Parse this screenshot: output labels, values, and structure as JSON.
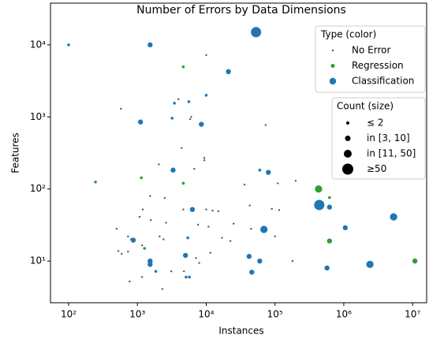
{
  "chart_data": {
    "type": "scatter",
    "title": "Number of Errors by Data Dimensions",
    "x_label": "Instances",
    "y_label": "Features",
    "log_x": true,
    "log_y": true,
    "xlim": [
      54.5,
      16000000
    ],
    "ylim": [
      2.64,
      37900
    ],
    "xticks": [
      {
        "value": 100,
        "label": "10²"
      },
      {
        "value": 1000,
        "label": "10³"
      },
      {
        "value": 10000,
        "label": "10⁴"
      },
      {
        "value": 100000,
        "label": "10⁵"
      },
      {
        "value": 1000000,
        "label": "10⁶"
      },
      {
        "value": 10000000,
        "label": "10⁷"
      }
    ],
    "yticks": [
      {
        "value": 10,
        "label": "10¹"
      },
      {
        "value": 100,
        "label": "10²"
      },
      {
        "value": 1000,
        "label": "10³"
      },
      {
        "value": 10000,
        "label": "10⁴"
      }
    ],
    "legend_title": "Type (color)",
    "size_legend_title": "Count (size)",
    "size_legend": [
      "≤ 2",
      "in [3, 10]",
      "in [11, 50]",
      "≥50"
    ],
    "series": [
      {
        "name": "No Error",
        "color": "#555555",
        "x": [
          10000,
          575,
          3950,
          6050,
          5850,
          9400,
          9400,
          4400,
          2050,
          6700,
          73000,
          200000,
          110000,
          36000,
          1530,
          2500,
          1200,
          4650,
          10000,
          12400,
          15000,
          43000,
          90000,
          115000,
          1080,
          500,
          1570,
          2600,
          7600,
          10800,
          25000,
          45000,
          100000,
          2100,
          2400,
          730,
          810,
          1170,
          530,
          590,
          730,
          11500,
          7100,
          180000,
          22500,
          17000,
          1170,
          770,
          2300,
          4750,
          3100,
          7900
        ],
        "y": [
          7200,
          1300,
          1760,
          1000,
          930,
          270,
          250,
          370,
          220,
          190,
          770,
          130,
          120,
          115,
          80,
          75,
          52,
          52,
          52,
          50,
          49,
          59,
          53,
          51,
          41,
          28,
          37,
          34,
          32,
          30,
          33,
          28,
          22,
          22,
          20,
          22,
          20,
          16.5,
          13.8,
          12.6,
          13.5,
          13,
          11,
          10,
          19,
          21,
          6,
          5.2,
          4.1,
          7.2,
          7.2,
          9.4
        ],
        "sizes": [
          1,
          1,
          1,
          1,
          1,
          1,
          1,
          1,
          1,
          1,
          1,
          1,
          1,
          1,
          1,
          1,
          1,
          1,
          1,
          1,
          1,
          1,
          1,
          1,
          1,
          1,
          1,
          1,
          1,
          1,
          1,
          1,
          1,
          1,
          1,
          1,
          1,
          1,
          1,
          1,
          1,
          1,
          1,
          1,
          1,
          1,
          1,
          1,
          1,
          1,
          1,
          1
        ]
      },
      {
        "name": "Regression",
        "color": "#2ca02c",
        "x": [
          246,
          4650,
          1140,
          4650,
          430000,
          620000,
          620000,
          10800000,
          1270
        ],
        "y": [
          125,
          4950,
          143,
          120,
          100,
          76,
          19,
          10,
          15
        ],
        "sizes": [
          2,
          2,
          2,
          2,
          20,
          2,
          5,
          5,
          2
        ]
      },
      {
        "name": "Classification",
        "color": "#1f77b4",
        "x": [
          53000,
          1530,
          100,
          21000,
          5590,
          3450,
          10000,
          3200,
          1110,
          8500,
          3300,
          60000,
          80000,
          6300,
          870,
          440000,
          620000,
          1050000,
          5300000,
          69000,
          5000,
          1530,
          1530,
          42000,
          60000,
          2400000,
          570000,
          46000,
          5100,
          5700,
          5400,
          1850
        ],
        "y": [
          15000,
          10000,
          10000,
          4250,
          1630,
          1550,
          2000,
          960,
          850,
          790,
          183,
          183,
          170,
          52,
          19.5,
          60,
          56,
          29,
          41,
          27.5,
          12,
          10,
          9,
          11.6,
          10,
          9,
          8,
          7,
          6,
          6,
          21,
          7.2
        ],
        "sizes": [
          60,
          5,
          2,
          5,
          2,
          2,
          2,
          2,
          5,
          5,
          5,
          2,
          5,
          5,
          5,
          60,
          5,
          5,
          20,
          20,
          5,
          5,
          5,
          5,
          5,
          20,
          5,
          5,
          2,
          2,
          2,
          2
        ]
      }
    ]
  }
}
